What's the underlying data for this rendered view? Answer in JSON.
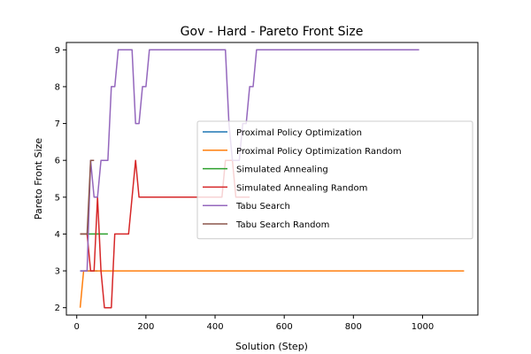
{
  "chart_data": {
    "type": "line",
    "title": "Gov - Hard - Pareto Front Size",
    "xlabel": "Solution (Step)",
    "ylabel": "Pareto Front Size",
    "xlim": [
      -30,
      1160
    ],
    "ylim": [
      1.8,
      9.2
    ],
    "xticks": [
      0,
      200,
      400,
      600,
      800,
      1000
    ],
    "yticks": [
      2,
      3,
      4,
      5,
      6,
      7,
      8,
      9
    ],
    "grid": false,
    "legend_position": "center-right",
    "series": [
      {
        "name": "Proximal Policy Optimization",
        "color": "#1f77b4",
        "points": [
          [
            10,
            3
          ],
          [
            60,
            3
          ]
        ]
      },
      {
        "name": "Proximal Policy Optimization Random",
        "color": "#ff7f0e",
        "points": [
          [
            10,
            2
          ],
          [
            20,
            3
          ],
          [
            1120,
            3
          ]
        ]
      },
      {
        "name": "Simulated Annealing",
        "color": "#2ca02c",
        "points": [
          [
            10,
            4
          ],
          [
            90,
            4
          ]
        ]
      },
      {
        "name": "Simulated Annealing Random",
        "color": "#d62728",
        "points": [
          [
            10,
            4
          ],
          [
            30,
            4
          ],
          [
            40,
            3
          ],
          [
            50,
            3
          ],
          [
            60,
            5
          ],
          [
            70,
            3
          ],
          [
            80,
            2
          ],
          [
            100,
            2
          ],
          [
            110,
            4
          ],
          [
            150,
            4
          ],
          [
            170,
            6
          ],
          [
            180,
            5
          ],
          [
            420,
            5
          ],
          [
            430,
            6
          ],
          [
            450,
            6
          ],
          [
            460,
            5
          ],
          [
            500,
            5
          ]
        ]
      },
      {
        "name": "Tabu Search",
        "color": "#9467bd",
        "points": [
          [
            10,
            3
          ],
          [
            30,
            3
          ],
          [
            40,
            6
          ],
          [
            50,
            5
          ],
          [
            60,
            5
          ],
          [
            70,
            6
          ],
          [
            90,
            6
          ],
          [
            100,
            8
          ],
          [
            110,
            8
          ],
          [
            120,
            9
          ],
          [
            160,
            9
          ],
          [
            170,
            7
          ],
          [
            180,
            7
          ],
          [
            190,
            8
          ],
          [
            200,
            8
          ],
          [
            210,
            9
          ],
          [
            430,
            9
          ],
          [
            440,
            7
          ],
          [
            450,
            6
          ],
          [
            470,
            6
          ],
          [
            480,
            7
          ],
          [
            490,
            7
          ],
          [
            500,
            8
          ],
          [
            510,
            8
          ],
          [
            520,
            9
          ],
          [
            990,
            9
          ]
        ]
      },
      {
        "name": "Tabu Search Random",
        "color": "#8c564b",
        "points": [
          [
            10,
            4
          ],
          [
            30,
            4
          ],
          [
            40,
            6
          ],
          [
            50,
            6
          ]
        ]
      }
    ]
  }
}
